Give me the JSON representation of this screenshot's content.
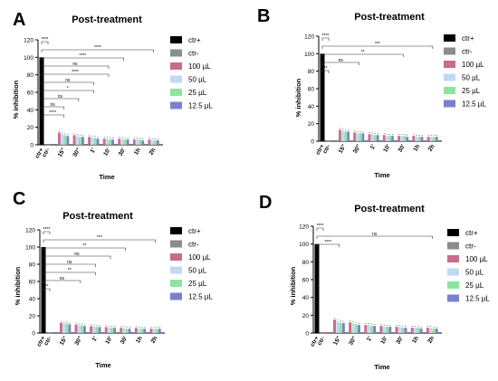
{
  "times": [
    "15\"",
    "30\"",
    "1'",
    "10'",
    "30'",
    "1h",
    "2h"
  ],
  "legend": [
    {
      "label": "ctr+",
      "color": "#000000"
    },
    {
      "label": "ctr-",
      "color": "#8c8c8c"
    },
    {
      "label": "100 µL",
      "color": "#c96b8c"
    },
    {
      "label": "50 µL",
      "color": "#bfd9f2"
    },
    {
      "label": "25 µL",
      "color": "#8fe39e"
    },
    {
      "label": "12.5 µL",
      "color": "#7a80cf"
    }
  ],
  "chart_data": [
    {
      "panel_letter": "A",
      "type": "bar",
      "title": "Post-treatment",
      "xlabel": "Time",
      "ylabel": "% inhibition",
      "ylim": [
        0,
        120
      ],
      "yticks": [
        "0",
        "20",
        "40",
        "60",
        "80",
        "100",
        "120"
      ],
      "control_labels": [
        "ctr+",
        "ctr-"
      ],
      "controls": {
        "ctr+": 100,
        "ctr-": 0
      },
      "categories": [
        "15\"",
        "30\"",
        "1'",
        "10'",
        "30'",
        "1h",
        "2h"
      ],
      "series": [
        {
          "name": "100 µL",
          "values": [
            14,
            11,
            9,
            7,
            7,
            6,
            6
          ]
        },
        {
          "name": "50 µL",
          "values": [
            12,
            10,
            8,
            7,
            6,
            6,
            5
          ]
        },
        {
          "name": "25 µL",
          "values": [
            11,
            9,
            8,
            6,
            6,
            6,
            5
          ]
        },
        {
          "name": "12.5 µL",
          "values": [
            10,
            9,
            7,
            6,
            6,
            5,
            5
          ]
        }
      ],
      "brackets": [
        {
          "label": "****",
          "to": 1
        },
        {
          "label": "****",
          "to": 8
        },
        {
          "label": "****",
          "to": 6
        },
        {
          "label": "ns",
          "to": 5
        },
        {
          "label": "****",
          "to": 5
        },
        {
          "label": "ns",
          "to": 4
        },
        {
          "label": "*",
          "to": 4
        },
        {
          "label": "ns",
          "to": 3
        },
        {
          "label": "ns",
          "to": 2
        },
        {
          "label": "****",
          "to": 2
        }
      ]
    },
    {
      "panel_letter": "B",
      "type": "bar",
      "title": "Post-treatment",
      "xlabel": "Time",
      "ylabel": "% inhibition",
      "ylim": [
        0,
        120
      ],
      "yticks": [
        "0",
        "20",
        "40",
        "60",
        "80",
        "100",
        "120"
      ],
      "control_labels": [
        "ctr+",
        "ctr-"
      ],
      "controls": {
        "ctr+": 100,
        "ctr-": 0
      },
      "categories": [
        "15\"",
        "30\"",
        "1'",
        "10'",
        "30'",
        "1h",
        "2h"
      ],
      "series": [
        {
          "name": "100 µL",
          "values": [
            13,
            10,
            8,
            7,
            6,
            6,
            5
          ]
        },
        {
          "name": "50 µL",
          "values": [
            12,
            9,
            8,
            6,
            6,
            5,
            5
          ]
        },
        {
          "name": "25 µL",
          "values": [
            11,
            9,
            7,
            6,
            6,
            5,
            5
          ]
        },
        {
          "name": "12.5 µL",
          "values": [
            11,
            9,
            7,
            6,
            5,
            5,
            5
          ]
        }
      ],
      "brackets": [
        {
          "label": "****",
          "to": 1
        },
        {
          "label": "***",
          "to": 8
        },
        {
          "label": "**",
          "to": 6
        },
        {
          "label": "ns",
          "to": 3
        },
        {
          "label": "**",
          "to": 1
        }
      ]
    },
    {
      "panel_letter": "C",
      "type": "bar",
      "title": "Post-treatment",
      "xlabel": "Time",
      "ylabel": "% inhibition",
      "ylim": [
        0,
        120
      ],
      "yticks": [
        "0",
        "20",
        "40",
        "60",
        "80",
        "100",
        "120"
      ],
      "control_labels": [
        "ctr+",
        "ctr-"
      ],
      "controls": {
        "ctr+": 100,
        "ctr-": 0
      },
      "categories": [
        "15\"",
        "30\"",
        "1'",
        "10'",
        "30'",
        "1h",
        "2h"
      ],
      "series": [
        {
          "name": "100 µL",
          "values": [
            12,
            10,
            8,
            7,
            6,
            6,
            5
          ]
        },
        {
          "name": "50 µL",
          "values": [
            11,
            9,
            8,
            6,
            6,
            5,
            5
          ]
        },
        {
          "name": "25 µL",
          "values": [
            11,
            9,
            7,
            6,
            5,
            5,
            5
          ]
        },
        {
          "name": "12.5 µL",
          "values": [
            10,
            8,
            7,
            6,
            5,
            5,
            5
          ]
        }
      ],
      "brackets": [
        {
          "label": "****",
          "to": 1
        },
        {
          "label": "***",
          "to": 8
        },
        {
          "label": "**",
          "to": 6
        },
        {
          "label": "ns",
          "to": 5
        },
        {
          "label": "ns",
          "to": 4
        },
        {
          "label": "**",
          "to": 4
        },
        {
          "label": "ns",
          "to": 3
        },
        {
          "label": "**",
          "to": 1
        }
      ]
    },
    {
      "panel_letter": "D",
      "type": "bar",
      "title": "Post-treatment",
      "xlabel": "Time",
      "ylabel": "% inhibition",
      "ylim": [
        0,
        120
      ],
      "yticks": [
        "0",
        "20",
        "40",
        "60",
        "80",
        "100",
        "120"
      ],
      "control_labels": [
        "ctr+",
        "ctr-"
      ],
      "controls": {
        "ctr+": 100,
        "ctr-": 0
      },
      "categories": [
        "15\"",
        "30\"",
        "1'",
        "10'",
        "30'",
        "1h",
        "2h"
      ],
      "series": [
        {
          "name": "100 µL",
          "values": [
            15,
            12,
            9,
            8,
            7,
            6,
            6
          ]
        },
        {
          "name": "50 µL",
          "values": [
            13,
            11,
            9,
            7,
            7,
            6,
            6
          ]
        },
        {
          "name": "25 µL",
          "values": [
            12,
            10,
            8,
            7,
            6,
            6,
            5
          ]
        },
        {
          "name": "12.5 µL",
          "values": [
            11,
            9,
            8,
            7,
            6,
            5,
            5
          ]
        }
      ],
      "brackets": [
        {
          "label": "****",
          "to": 1
        },
        {
          "label": "ns",
          "to": 8
        },
        {
          "label": "****",
          "to": 2
        }
      ]
    }
  ]
}
